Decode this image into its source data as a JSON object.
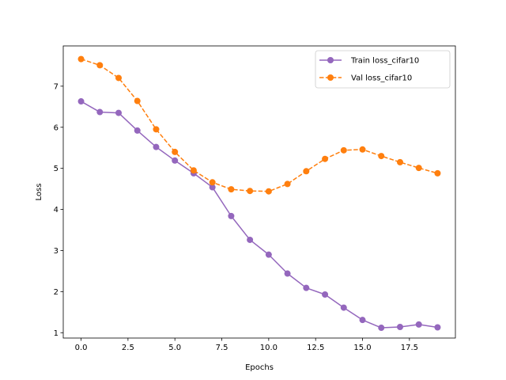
{
  "chart_data": {
    "type": "line",
    "title": "",
    "xlabel": "Epochs",
    "ylabel": "Loss",
    "xlim": [
      -0.95,
      19.95
    ],
    "ylim": [
      0.87,
      7.98
    ],
    "x_ticks": [
      0.0,
      2.5,
      5.0,
      7.5,
      10.0,
      12.5,
      15.0,
      17.5
    ],
    "x_tick_labels": [
      "0.0",
      "2.5",
      "5.0",
      "7.5",
      "10.0",
      "12.5",
      "15.0",
      "17.5"
    ],
    "y_ticks": [
      1,
      2,
      3,
      4,
      5,
      6,
      7
    ],
    "y_tick_labels": [
      "1",
      "2",
      "3",
      "4",
      "5",
      "6",
      "7"
    ],
    "grid": false,
    "legend_position": "top-right",
    "x": [
      0,
      1,
      2,
      3,
      4,
      5,
      6,
      7,
      8,
      9,
      10,
      11,
      12,
      13,
      14,
      15,
      16,
      17,
      18,
      19
    ],
    "series": [
      {
        "name": "Train loss_cifar10",
        "color": "#9467bd",
        "line_style": "solid",
        "marker": "circle",
        "values": [
          6.63,
          6.37,
          6.35,
          5.92,
          5.52,
          5.19,
          4.88,
          4.54,
          3.84,
          3.26,
          2.9,
          2.44,
          2.09,
          1.93,
          1.61,
          1.31,
          1.12,
          1.14,
          1.2,
          1.13
        ]
      },
      {
        "name": "Val loss_cifar10",
        "color": "#ff7f0e",
        "line_style": "dashed",
        "marker": "circle",
        "values": [
          7.66,
          7.51,
          7.2,
          6.64,
          5.95,
          5.4,
          4.95,
          4.66,
          4.49,
          4.45,
          4.44,
          4.62,
          4.93,
          5.23,
          5.44,
          5.46,
          5.3,
          5.15,
          5.01,
          4.88
        ]
      }
    ]
  }
}
